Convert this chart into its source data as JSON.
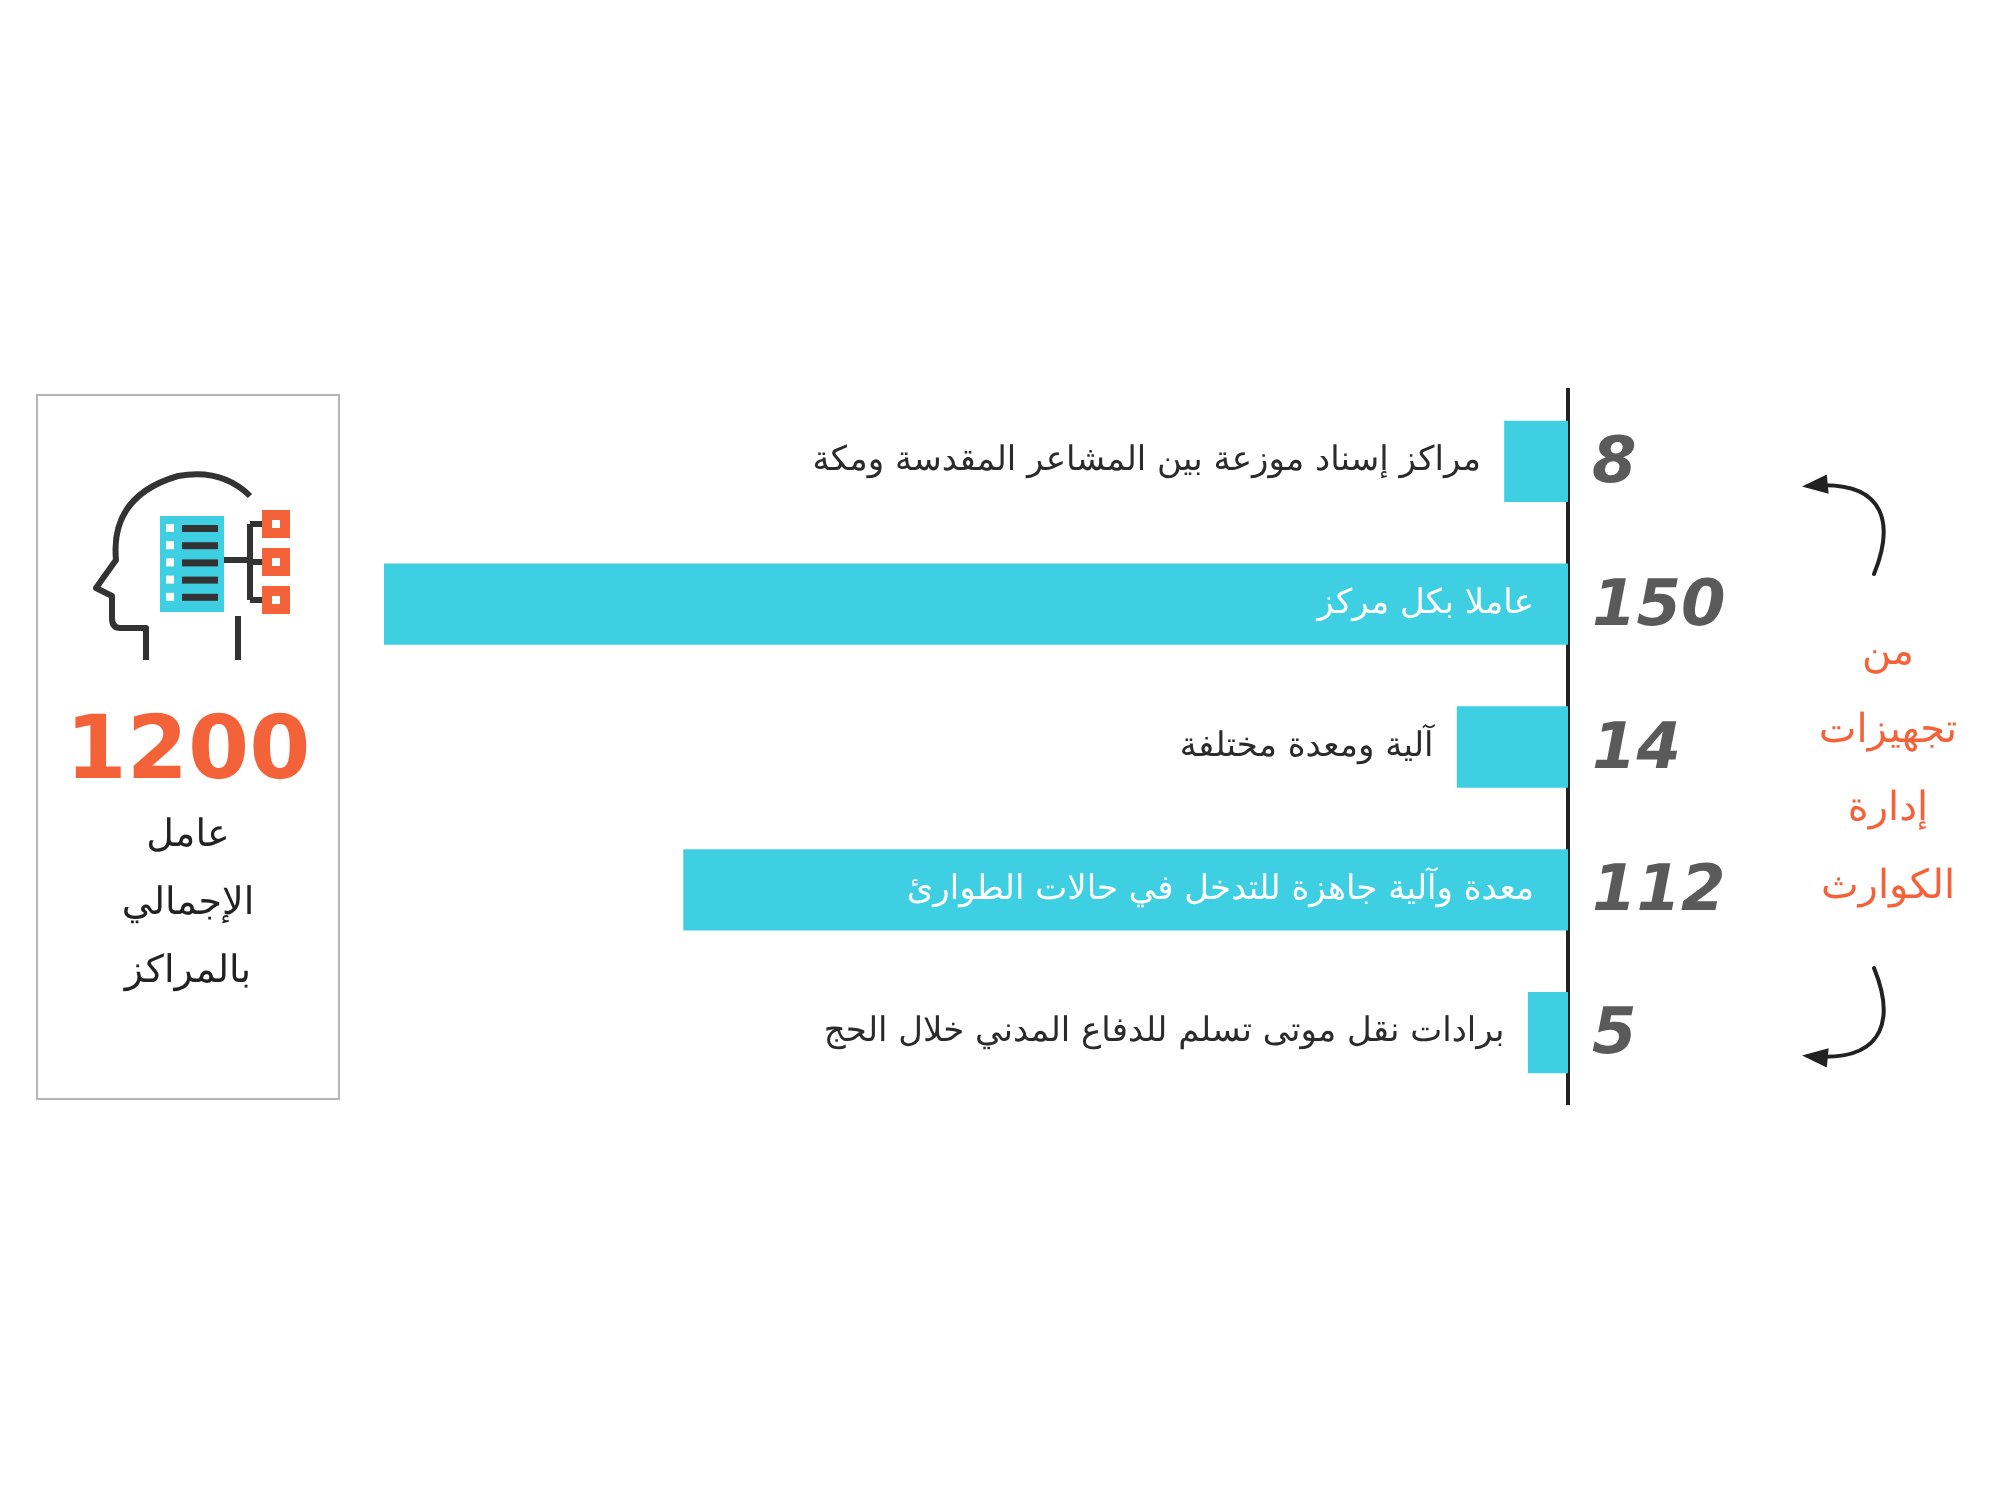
{
  "chart_data": [
    {
      "type": "other",
      "title": "1200",
      "subtitle": "عامل الإجمالي بالمراكز"
    },
    {
      "type": "bar",
      "orientation": "horizontal",
      "categories": [
        "مراكز إسناد موزعة بين المشاعر المقدسة ومكة",
        "عاملا بكل مركز",
        "آلية ومعدة مختلفة",
        "معدة وآلية جاهزة للتدخل في حالات الطوارئ",
        "برادات نقل موتى تسلم للدفاع المدني خلال الحج"
      ],
      "values": [
        8,
        150,
        14,
        112,
        5
      ],
      "color": "#3ecfe3",
      "xlim": [
        150,
        0
      ],
      "data_labels": true,
      "tick_labels": "y",
      "annotations": [
        "من تجهيزات إدارة الكوارث"
      ]
    }
  ]
}
